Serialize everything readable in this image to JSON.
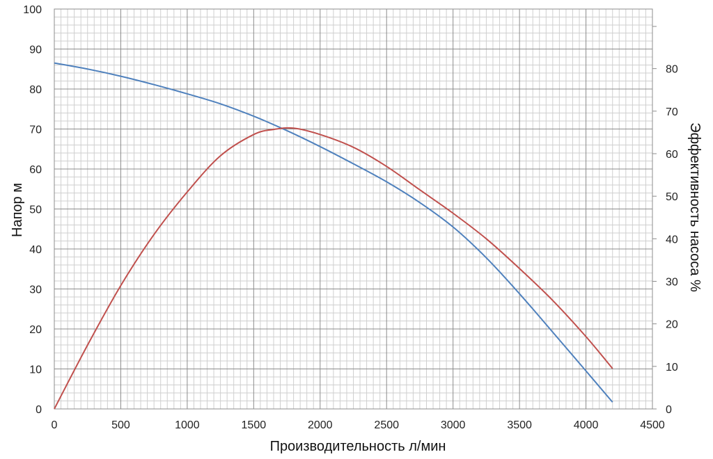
{
  "chart_data": {
    "type": "line",
    "title": "",
    "xlabel": "Производительность л/мин",
    "ylabel": "Напор м",
    "y2label": "Эффективность насоса %",
    "xlim": [
      0,
      4500
    ],
    "ylim": [
      0,
      100
    ],
    "y2lim": [
      0,
      94
    ],
    "x_ticks": [
      0,
      500,
      1000,
      1500,
      2000,
      2500,
      3000,
      3500,
      4000,
      4500
    ],
    "y_ticks": [
      0,
      10,
      20,
      30,
      40,
      50,
      60,
      70,
      80,
      90,
      100
    ],
    "y2_ticks": [
      0,
      10,
      20,
      30,
      40,
      50,
      60,
      70,
      80
    ],
    "grid": true,
    "series": [
      {
        "axis": "left",
        "color": "#4f81bd",
        "x": [
          0,
          250,
          500,
          750,
          1000,
          1250,
          1500,
          1750,
          2000,
          2250,
          2500,
          2750,
          3000,
          3250,
          3500,
          3750,
          4000,
          4200
        ],
        "y": [
          86.5,
          85.0,
          83.2,
          81.1,
          78.8,
          76.3,
          73.2,
          69.6,
          65.6,
          61.3,
          56.8,
          51.6,
          45.5,
          37.8,
          28.8,
          19.2,
          9.5,
          1.7
        ]
      },
      {
        "axis": "right",
        "color": "#c0504d",
        "x": [
          0,
          250,
          500,
          750,
          1000,
          1250,
          1500,
          1650,
          1800,
          2000,
          2250,
          2500,
          2750,
          3000,
          3250,
          3500,
          3750,
          4000,
          4200
        ],
        "y": [
          0,
          15,
          29,
          41,
          51,
          59.5,
          64.5,
          65.7,
          66,
          64.5,
          61.5,
          57,
          51.5,
          46,
          40,
          33,
          25.5,
          17,
          9.5
        ]
      }
    ]
  }
}
